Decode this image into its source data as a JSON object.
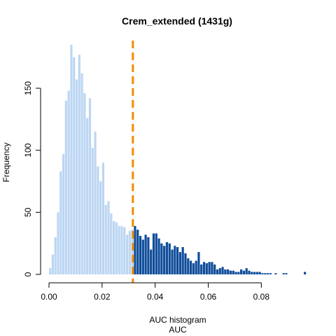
{
  "chart_data": {
    "type": "bar",
    "title": "Crem_extended (1431g)",
    "xlabel": "AUC",
    "xlabel_top": "AUC histogram",
    "ylabel": "Frequency",
    "xlim": [
      0,
      0.096
    ],
    "ylim": [
      0,
      185
    ],
    "x_ticks": [
      0,
      0.02,
      0.04,
      0.06,
      0.08
    ],
    "x_tick_labels": [
      "0.00",
      "0.02",
      "0.04",
      "0.06",
      "0.08"
    ],
    "y_ticks": [
      0,
      50,
      100,
      150
    ],
    "y_tick_labels": [
      "0",
      "50",
      "100",
      "150"
    ],
    "bin_width": 0.001,
    "bin_start": 0,
    "threshold": 0.0316,
    "colors": {
      "below_threshold": "#BCD6F3",
      "above_threshold": "#0E4C9A",
      "threshold_line": "#F08C00"
    },
    "values": [
      5,
      16,
      30,
      50,
      83,
      97,
      140,
      148,
      185,
      175,
      157,
      177,
      162,
      146,
      126,
      142,
      102,
      115,
      87,
      75,
      90,
      56,
      59,
      49,
      43,
      42,
      39,
      39,
      38,
      32,
      35,
      36,
      39,
      36,
      31,
      28,
      32,
      30,
      20,
      33,
      33,
      29,
      25,
      23,
      26,
      25,
      20,
      23,
      22,
      18,
      22,
      17,
      13,
      11,
      9,
      11,
      18,
      8,
      10,
      9,
      10,
      10,
      8,
      4,
      5,
      6,
      4,
      4,
      3,
      3,
      2,
      2,
      4,
      3,
      5,
      3,
      2,
      2,
      2,
      2,
      1,
      1,
      1,
      1,
      0,
      1,
      0,
      0,
      1,
      1,
      0,
      0,
      0,
      0,
      0,
      0,
      2
    ]
  }
}
